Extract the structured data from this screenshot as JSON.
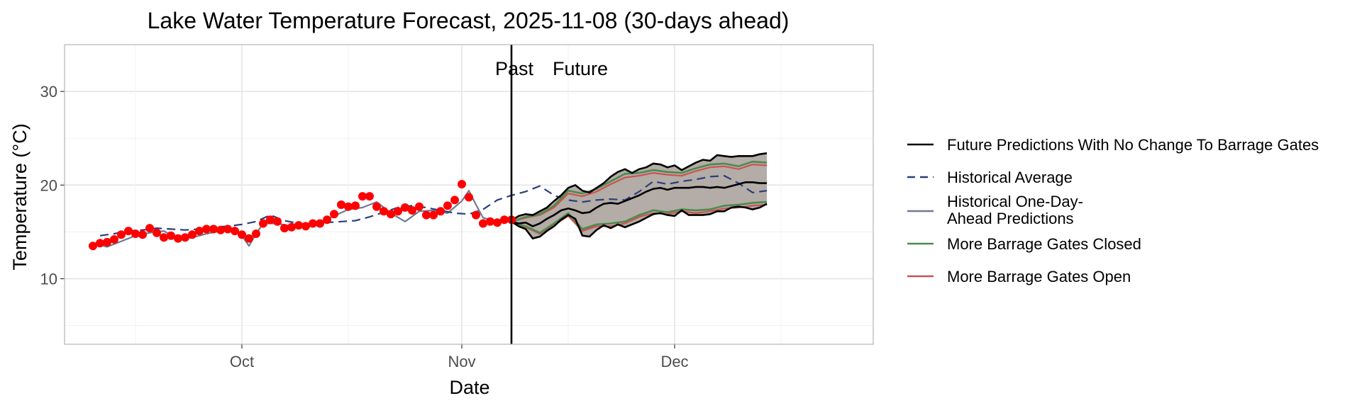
{
  "chart_data": {
    "type": "line",
    "title": "Lake Water Temperature Forecast, 2025-11-08 (30-days ahead)",
    "xlabel": "Date",
    "ylabel": "Temperature (°C)",
    "xlim": [
      "2025-09-06",
      "2025-12-29"
    ],
    "ylim": [
      3,
      35
    ],
    "x_ticks": [
      {
        "date": "2025-10-01",
        "label": "Oct"
      },
      {
        "date": "2025-11-01",
        "label": "Nov"
      },
      {
        "date": "2025-12-01",
        "label": "Dec"
      }
    ],
    "y_ticks": [
      10,
      20,
      30
    ],
    "grid": true,
    "legend_position": "right",
    "divider": {
      "date": "2025-11-08",
      "left_label": "Past",
      "right_label": "Future"
    },
    "series": [
      {
        "name": "Historical Average",
        "style": "dashed",
        "color": "#2b3e7d",
        "x": [
          "2025-09-11",
          "2025-09-13",
          "2025-09-15",
          "2025-09-17",
          "2025-09-19",
          "2025-09-21",
          "2025-09-23",
          "2025-09-25",
          "2025-09-27",
          "2025-09-29",
          "2025-10-01",
          "2025-10-03",
          "2025-10-05",
          "2025-10-07",
          "2025-10-09",
          "2025-10-11",
          "2025-10-13",
          "2025-10-15",
          "2025-10-17",
          "2025-10-19",
          "2025-10-21",
          "2025-10-23",
          "2025-10-25",
          "2025-10-27",
          "2025-10-29",
          "2025-10-31",
          "2025-11-02",
          "2025-11-04",
          "2025-11-06",
          "2025-11-08",
          "2025-11-10",
          "2025-11-12",
          "2025-11-14",
          "2025-11-16",
          "2025-11-18",
          "2025-11-20",
          "2025-11-22",
          "2025-11-24",
          "2025-11-26",
          "2025-11-28",
          "2025-11-30",
          "2025-12-02",
          "2025-12-04",
          "2025-12-06",
          "2025-12-08",
          "2025-12-10",
          "2025-12-12",
          "2025-12-14"
        ],
        "y": [
          14.6,
          14.8,
          15.1,
          15.2,
          15.4,
          15.3,
          15.2,
          15.3,
          15.5,
          15.6,
          15.8,
          16.1,
          16.8,
          16.2,
          15.9,
          15.8,
          16.0,
          16.1,
          16.2,
          16.6,
          17.1,
          17.6,
          17.8,
          17.6,
          17.3,
          17.0,
          16.9,
          17.4,
          18.4,
          18.9,
          19.3,
          19.9,
          18.9,
          18.4,
          18.2,
          18.4,
          18.5,
          18.4,
          19.3,
          20.4,
          20.1,
          20.4,
          20.6,
          20.9,
          21.0,
          20.2,
          19.2,
          19.4
        ]
      },
      {
        "name": "Historical One-Day-Ahead Predictions",
        "style": "solid",
        "color": "#6e7a92",
        "x": [
          "2025-09-10",
          "2025-09-12",
          "2025-09-14",
          "2025-09-16",
          "2025-09-18",
          "2025-09-20",
          "2025-09-22",
          "2025-09-24",
          "2025-09-26",
          "2025-09-28",
          "2025-09-30",
          "2025-10-01",
          "2025-10-02",
          "2025-10-03",
          "2025-10-04",
          "2025-10-06",
          "2025-10-08",
          "2025-10-10",
          "2025-10-12",
          "2025-10-14",
          "2025-10-16",
          "2025-10-18",
          "2025-10-20",
          "2025-10-22",
          "2025-10-24",
          "2025-10-26",
          "2025-10-28",
          "2025-10-30",
          "2025-11-01",
          "2025-11-02",
          "2025-11-03",
          "2025-11-04",
          "2025-11-06",
          "2025-11-08"
        ],
        "y": [
          13.8,
          13.4,
          14.0,
          14.6,
          14.9,
          15.1,
          14.2,
          14.4,
          14.8,
          15.1,
          15.2,
          14.6,
          13.5,
          14.8,
          15.9,
          15.9,
          15.6,
          15.8,
          16.0,
          16.7,
          17.4,
          17.6,
          18.2,
          17.0,
          16.1,
          17.2,
          17.3,
          17.0,
          18.3,
          19.4,
          17.9,
          16.5,
          16.1,
          16.4
        ]
      },
      {
        "name": "Observed",
        "style": "points",
        "color": "#ff0000",
        "x": [
          "2025-09-10",
          "2025-09-11",
          "2025-09-12",
          "2025-09-13",
          "2025-09-14",
          "2025-09-15",
          "2025-09-16",
          "2025-09-17",
          "2025-09-18",
          "2025-09-19",
          "2025-09-20",
          "2025-09-21",
          "2025-09-22",
          "2025-09-23",
          "2025-09-24",
          "2025-09-25",
          "2025-09-26",
          "2025-09-27",
          "2025-09-28",
          "2025-09-29",
          "2025-09-30",
          "2025-10-01",
          "2025-10-02",
          "2025-10-03",
          "2025-10-04",
          "2025-10-05",
          "2025-10-06",
          "2025-10-07",
          "2025-10-08",
          "2025-10-09",
          "2025-10-10",
          "2025-10-11",
          "2025-10-12",
          "2025-10-13",
          "2025-10-14",
          "2025-10-15",
          "2025-10-16",
          "2025-10-17",
          "2025-10-18",
          "2025-10-19",
          "2025-10-20",
          "2025-10-21",
          "2025-10-22",
          "2025-10-23",
          "2025-10-24",
          "2025-10-25",
          "2025-10-26",
          "2025-10-27",
          "2025-10-28",
          "2025-10-29",
          "2025-10-30",
          "2025-10-31",
          "2025-11-01",
          "2025-11-02",
          "2025-11-03",
          "2025-11-04",
          "2025-11-05",
          "2025-11-06",
          "2025-11-07",
          "2025-11-08"
        ],
        "y": [
          13.5,
          13.8,
          13.9,
          14.2,
          14.7,
          15.1,
          14.8,
          14.7,
          15.4,
          14.9,
          14.4,
          14.6,
          14.3,
          14.4,
          14.7,
          15.1,
          15.3,
          15.3,
          15.2,
          15.3,
          15.1,
          14.7,
          14.3,
          14.8,
          15.9,
          16.3,
          16.1,
          15.4,
          15.5,
          15.7,
          15.6,
          15.9,
          15.9,
          16.3,
          16.9,
          17.9,
          17.7,
          17.8,
          18.8,
          18.8,
          17.7,
          17.2,
          16.9,
          17.2,
          17.6,
          17.3,
          17.7,
          16.8,
          16.8,
          17.2,
          17.8,
          18.4,
          20.1,
          18.7,
          16.8,
          15.9,
          16.1,
          16.0,
          16.3,
          16.3
        ]
      },
      {
        "name": "Future Predictions With No Change To Barrage Gates",
        "style": "solid",
        "color": "#000000",
        "role": "ensemble upper / median / lower",
        "x": [
          "2025-11-08",
          "2025-11-09",
          "2025-11-10",
          "2025-11-11",
          "2025-11-12",
          "2025-11-13",
          "2025-11-14",
          "2025-11-15",
          "2025-11-16",
          "2025-11-17",
          "2025-11-18",
          "2025-11-19",
          "2025-11-20",
          "2025-11-21",
          "2025-11-22",
          "2025-11-23",
          "2025-11-24",
          "2025-11-25",
          "2025-11-26",
          "2025-11-27",
          "2025-11-28",
          "2025-11-29",
          "2025-11-30",
          "2025-12-01",
          "2025-12-02",
          "2025-12-03",
          "2025-12-04",
          "2025-12-05",
          "2025-12-06",
          "2025-12-07",
          "2025-12-08",
          "2025-12-09",
          "2025-12-10",
          "2025-12-11",
          "2025-12-12",
          "2025-12-13",
          "2025-12-14"
        ],
        "upper": [
          16.2,
          16.7,
          16.9,
          16.8,
          17.2,
          17.6,
          18.3,
          18.9,
          19.7,
          20.0,
          19.4,
          19.2,
          19.7,
          20.2,
          20.9,
          21.4,
          21.7,
          21.3,
          21.7,
          21.9,
          22.3,
          22.2,
          21.9,
          22.1,
          21.6,
          22.0,
          22.4,
          22.7,
          22.6,
          23.2,
          23.1,
          23.0,
          23.1,
          23.1,
          23.1,
          23.3,
          23.4
        ],
        "median": [
          16.1,
          15.9,
          16.0,
          15.6,
          15.9,
          16.4,
          16.8,
          17.3,
          17.5,
          17.3,
          17.0,
          17.1,
          17.6,
          18.0,
          18.1,
          18.0,
          18.3,
          18.6,
          18.9,
          19.3,
          19.6,
          19.7,
          19.5,
          19.7,
          19.7,
          19.7,
          19.8,
          19.8,
          19.7,
          19.8,
          19.7,
          19.9,
          20.1,
          20.3,
          20.3,
          20.2,
          20.2
        ],
        "lower": [
          16.1,
          15.6,
          15.3,
          14.3,
          14.5,
          15.1,
          15.6,
          16.3,
          16.8,
          16.4,
          14.6,
          14.5,
          15.2,
          15.7,
          15.4,
          15.8,
          15.5,
          15.8,
          16.1,
          16.5,
          16.9,
          17.0,
          16.8,
          16.7,
          17.3,
          16.8,
          16.8,
          16.8,
          16.9,
          17.2,
          17.2,
          17.6,
          17.7,
          17.6,
          17.4,
          17.6,
          18.0
        ]
      },
      {
        "name": "More Barrage Gates Closed",
        "style": "solid",
        "color": "#4d8a4d",
        "x": [
          "2025-11-08",
          "2025-11-10",
          "2025-11-12",
          "2025-11-14",
          "2025-11-16",
          "2025-11-18",
          "2025-11-20",
          "2025-11-22",
          "2025-11-24",
          "2025-11-26",
          "2025-11-28",
          "2025-11-30",
          "2025-12-02",
          "2025-12-04",
          "2025-12-06",
          "2025-12-08",
          "2025-12-10",
          "2025-12-12",
          "2025-12-14"
        ],
        "upper": [
          16.1,
          16.6,
          16.9,
          17.8,
          19.4,
          19.1,
          19.6,
          20.4,
          21.2,
          21.3,
          21.6,
          21.4,
          21.3,
          21.8,
          22.2,
          22.3,
          22.0,
          22.5,
          22.4
        ],
        "lower": [
          16.0,
          15.6,
          14.9,
          15.9,
          17.0,
          15.3,
          15.8,
          15.9,
          16.1,
          16.8,
          17.3,
          17.1,
          17.4,
          17.3,
          17.4,
          17.8,
          17.9,
          18.1,
          18.2
        ]
      },
      {
        "name": "More Barrage Gates Open",
        "style": "solid",
        "color": "#cc5252",
        "x": [
          "2025-11-08",
          "2025-11-10",
          "2025-11-12",
          "2025-11-14",
          "2025-11-16",
          "2025-11-18",
          "2025-11-20",
          "2025-11-22",
          "2025-11-24",
          "2025-11-26",
          "2025-11-28",
          "2025-11-30",
          "2025-12-02",
          "2025-12-04",
          "2025-12-06",
          "2025-12-08",
          "2025-12-10",
          "2025-12-12",
          "2025-12-14"
        ],
        "upper": [
          16.1,
          16.5,
          16.8,
          17.6,
          19.1,
          18.8,
          19.3,
          20.1,
          20.8,
          21.0,
          21.3,
          21.1,
          21.0,
          21.5,
          21.9,
          22.0,
          21.7,
          22.2,
          22.1
        ],
        "lower": [
          16.0,
          15.5,
          14.8,
          15.7,
          16.7,
          15.1,
          15.6,
          15.6,
          15.9,
          16.6,
          17.0,
          16.9,
          17.2,
          17.0,
          17.2,
          17.5,
          17.6,
          17.8,
          17.9
        ]
      }
    ],
    "legend": [
      {
        "series": "Future Predictions With No Change To Barrage Gates",
        "lines": [
          "Future Predictions With No Change To Barrage Gates"
        ],
        "color": "#000000",
        "dash": false
      },
      {
        "series": "Historical Average",
        "lines": [
          "Historical Average"
        ],
        "color": "#2b3e7d",
        "dash": true
      },
      {
        "series": "Historical One-Day-Ahead Predictions",
        "lines": [
          "Historical One-Day-",
          "Ahead Predictions"
        ],
        "color": "#6e7a92",
        "dash": false
      },
      {
        "series": "More Barrage Gates Closed",
        "lines": [
          "More Barrage Gates Closed"
        ],
        "color": "#4d8a4d",
        "dash": false
      },
      {
        "series": "More Barrage Gates Open",
        "lines": [
          "More Barrage Gates Open"
        ],
        "color": "#cc5252",
        "dash": false
      }
    ],
    "band_fill": "#b3aca7"
  }
}
